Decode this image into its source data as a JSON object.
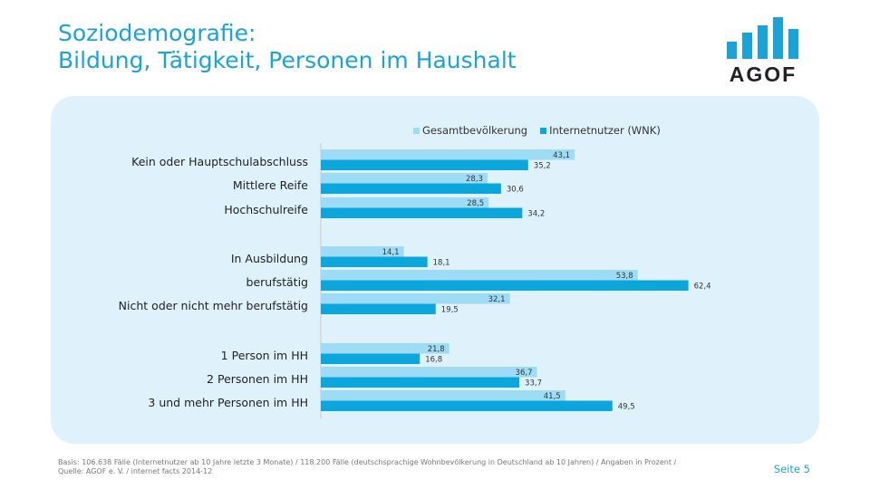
{
  "header": {
    "title_line1": "Soziodemografie:",
    "title_line2": "Bildung, Tätigkeit, Personen im Haushalt"
  },
  "logo": {
    "text": "AGOF"
  },
  "chart_data": {
    "type": "bar",
    "orientation": "horizontal",
    "categories": [
      "Kein oder Hauptschulabschluss",
      "Mittlere Reife",
      "Hochschulreife",
      "In Ausbildung",
      "berufstätig",
      "Nicht oder nicht mehr berufstätig",
      "1 Person im HH",
      "2 Personen im HH",
      "3 und mehr Personen im HH"
    ],
    "groups": [
      [
        0,
        1,
        2
      ],
      [
        3,
        4,
        5
      ],
      [
        6,
        7,
        8
      ]
    ],
    "series": [
      {
        "name": "Gesamtbevölkerung",
        "color": "#9edcf5",
        "values": [
          43.1,
          28.3,
          28.5,
          14.1,
          53.8,
          32.1,
          21.8,
          36.7,
          41.5
        ],
        "labels": [
          "43,1",
          "28,3",
          "28,5",
          "14,1",
          "53,8",
          "32,1",
          "21,8",
          "36,7",
          "41,5"
        ]
      },
      {
        "name": "Internetnutzer (WNK)",
        "color": "#0aa6dc",
        "values": [
          35.2,
          30.6,
          34.2,
          18.1,
          62.4,
          19.5,
          16.8,
          33.7,
          49.5
        ],
        "labels": [
          "35,2",
          "30,6",
          "34,2",
          "18,1",
          "62,4",
          "19,5",
          "16,8",
          "33,7",
          "49,5"
        ]
      }
    ],
    "xlim": [
      0,
      70
    ],
    "legend_position": "top",
    "grid": false
  },
  "footer": {
    "basis": "Basis: 106.638 Fälle (Internetnutzer ab 10 Jahre letzte 3 Monate) / 118.200 Fälle (deutschsprachige Wohnbevölkerung in Deutschland ab 10 Jahren) / Angaben in Prozent / Quelle: AGOF e. V. / internet facts 2014-12",
    "page": "Seite 5"
  }
}
